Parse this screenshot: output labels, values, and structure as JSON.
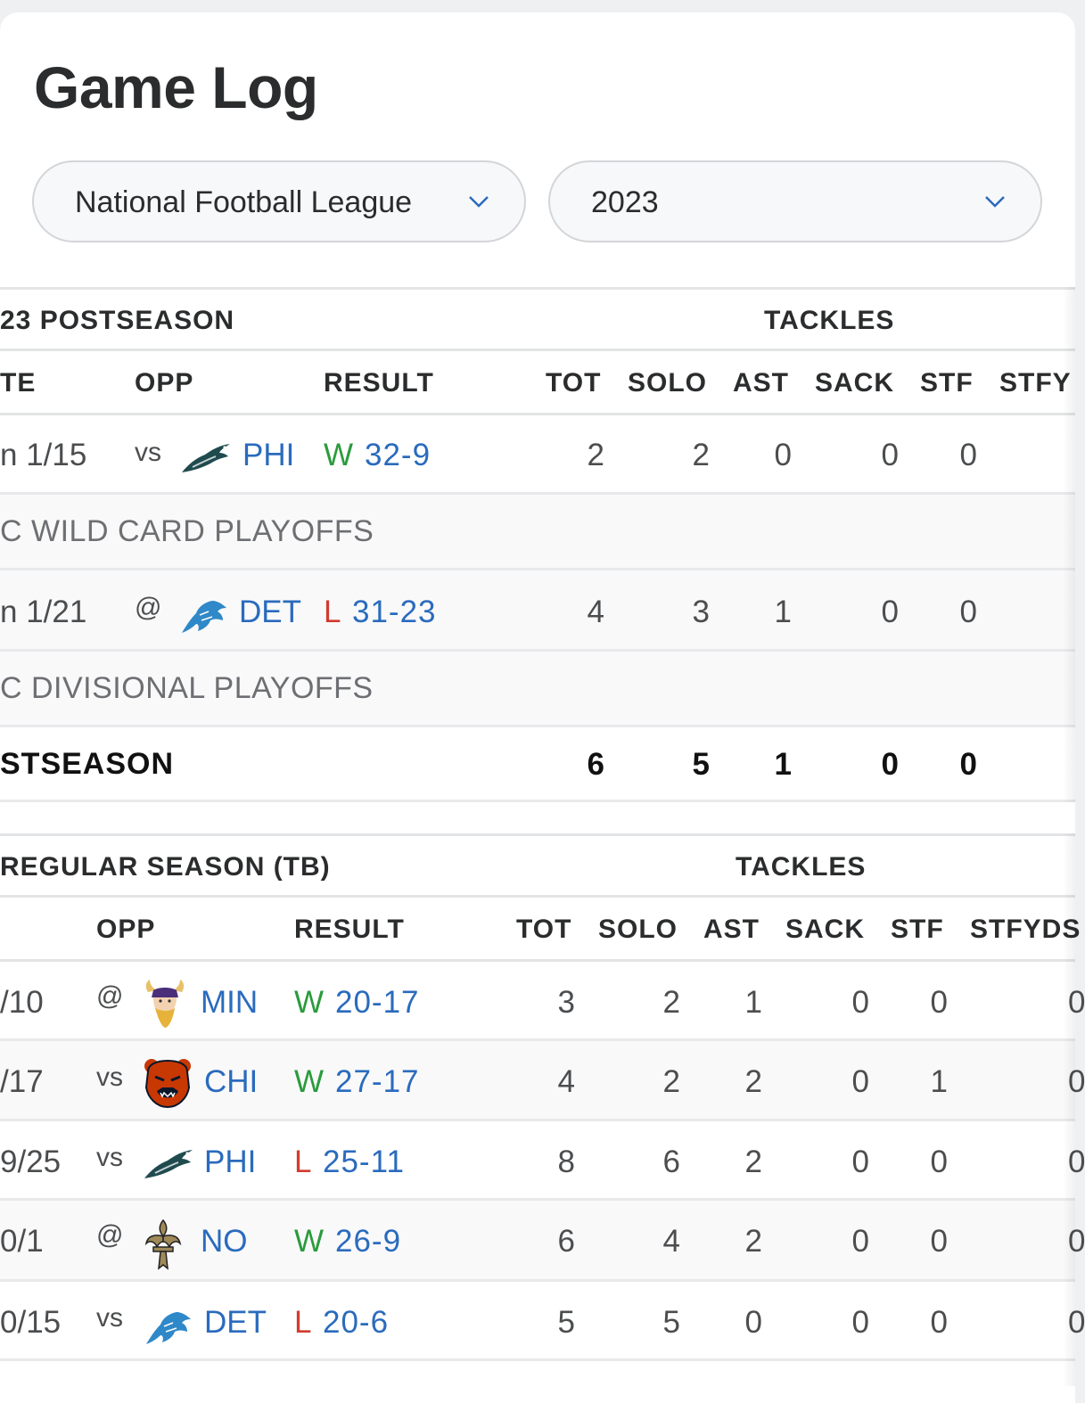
{
  "page": {
    "title": "Game Log"
  },
  "filters": {
    "league": "National Football League",
    "season": "2023"
  },
  "postseason": {
    "title": "23 POSTSEASON",
    "group": "TACKLES",
    "columns": [
      "TE",
      "OPP",
      "RESULT",
      "TOT",
      "SOLO",
      "AST",
      "SACK",
      "STF",
      "STFY"
    ],
    "games": [
      {
        "date": "n 1/15",
        "loc": "vs",
        "team": "PHI",
        "logo": "eagles-logo",
        "wl": "W",
        "score": "32-9",
        "tot": "2",
        "solo": "2",
        "ast": "0",
        "sack": "0",
        "stf": "0",
        "note": "C WILD CARD PLAYOFFS"
      },
      {
        "date": "n 1/21",
        "loc": "@",
        "team": "DET",
        "logo": "lions-logo",
        "wl": "L",
        "score": "31-23",
        "tot": "4",
        "solo": "3",
        "ast": "1",
        "sack": "0",
        "stf": "0",
        "note": "C DIVISIONAL PLAYOFFS"
      }
    ],
    "total": {
      "label": "STSEASON",
      "tot": "6",
      "solo": "5",
      "ast": "1",
      "sack": "0",
      "stf": "0"
    }
  },
  "regular": {
    "title": "REGULAR SEASON (TB)",
    "group": "TACKLES",
    "columns": [
      "OPP",
      "RESULT",
      "TOT",
      "SOLO",
      "AST",
      "SACK",
      "STF",
      "STFYDS"
    ],
    "games": [
      {
        "date": "/10",
        "loc": "@",
        "team": "MIN",
        "logo": "vikings-logo",
        "wl": "W",
        "score": "20-17",
        "tot": "3",
        "solo": "2",
        "ast": "1",
        "sack": "0",
        "stf": "0",
        "stfyds": "0"
      },
      {
        "date": "/17",
        "loc": "vs",
        "team": "CHI",
        "logo": "bears-logo",
        "wl": "W",
        "score": "27-17",
        "tot": "4",
        "solo": "2",
        "ast": "2",
        "sack": "0",
        "stf": "1",
        "stfyds": "0"
      },
      {
        "date": "9/25",
        "loc": "vs",
        "team": "PHI",
        "logo": "eagles-logo",
        "wl": "L",
        "score": "25-11",
        "tot": "8",
        "solo": "6",
        "ast": "2",
        "sack": "0",
        "stf": "0",
        "stfyds": "0"
      },
      {
        "date": "0/1",
        "loc": "@",
        "team": "NO",
        "logo": "saints-logo",
        "wl": "W",
        "score": "26-9",
        "tot": "6",
        "solo": "4",
        "ast": "2",
        "sack": "0",
        "stf": "0",
        "stfyds": "0"
      },
      {
        "date": "0/15",
        "loc": "vs",
        "team": "DET",
        "logo": "lions-logo",
        "wl": "L",
        "score": "20-6",
        "tot": "5",
        "solo": "5",
        "ast": "0",
        "sack": "0",
        "stf": "0",
        "stfyds": "0"
      }
    ]
  },
  "colors": {
    "link": "#2a6bbd",
    "win": "#2b9b3c",
    "loss": "#d23b30"
  }
}
